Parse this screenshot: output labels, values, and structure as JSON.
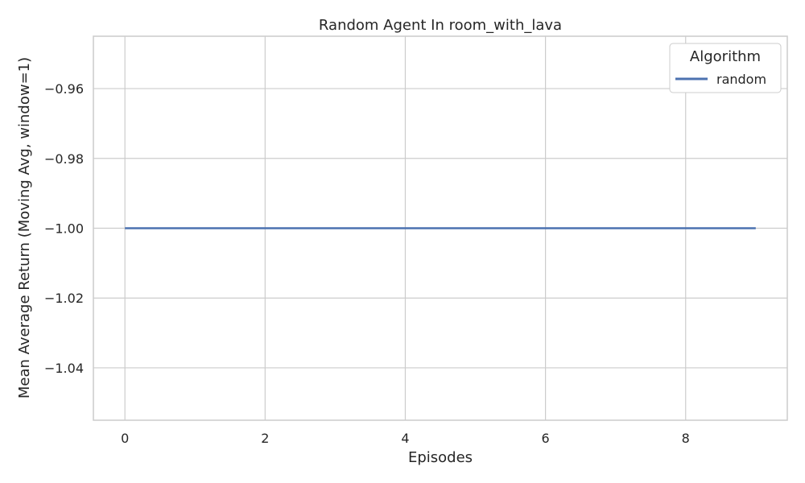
{
  "chart_data": {
    "type": "line",
    "title": "Random Agent In room_with_lava",
    "xlabel": "Episodes",
    "ylabel": "Mean Average Return (Moving Avg, window=1)",
    "xlim": [
      -0.45,
      9.45
    ],
    "ylim": [
      -1.055,
      -0.945
    ],
    "xticks": [
      0,
      2,
      4,
      6,
      8
    ],
    "yticks": [
      -1.04,
      -1.02,
      -1.0,
      -0.98,
      -0.96
    ],
    "xtick_labels": [
      "0",
      "2",
      "4",
      "6",
      "8"
    ],
    "ytick_labels": [
      "−1.04",
      "−1.02",
      "−1.00",
      "−0.98",
      "−0.96"
    ],
    "grid": true,
    "legend": {
      "title": "Algorithm",
      "placement": "top-right"
    },
    "x": [
      0,
      1,
      2,
      3,
      4,
      5,
      6,
      7,
      8,
      9
    ],
    "series": [
      {
        "name": "random",
        "color": "#4c72b0",
        "values": [
          -1.0,
          -1.0,
          -1.0,
          -1.0,
          -1.0,
          -1.0,
          -1.0,
          -1.0,
          -1.0,
          -1.0
        ]
      }
    ]
  }
}
